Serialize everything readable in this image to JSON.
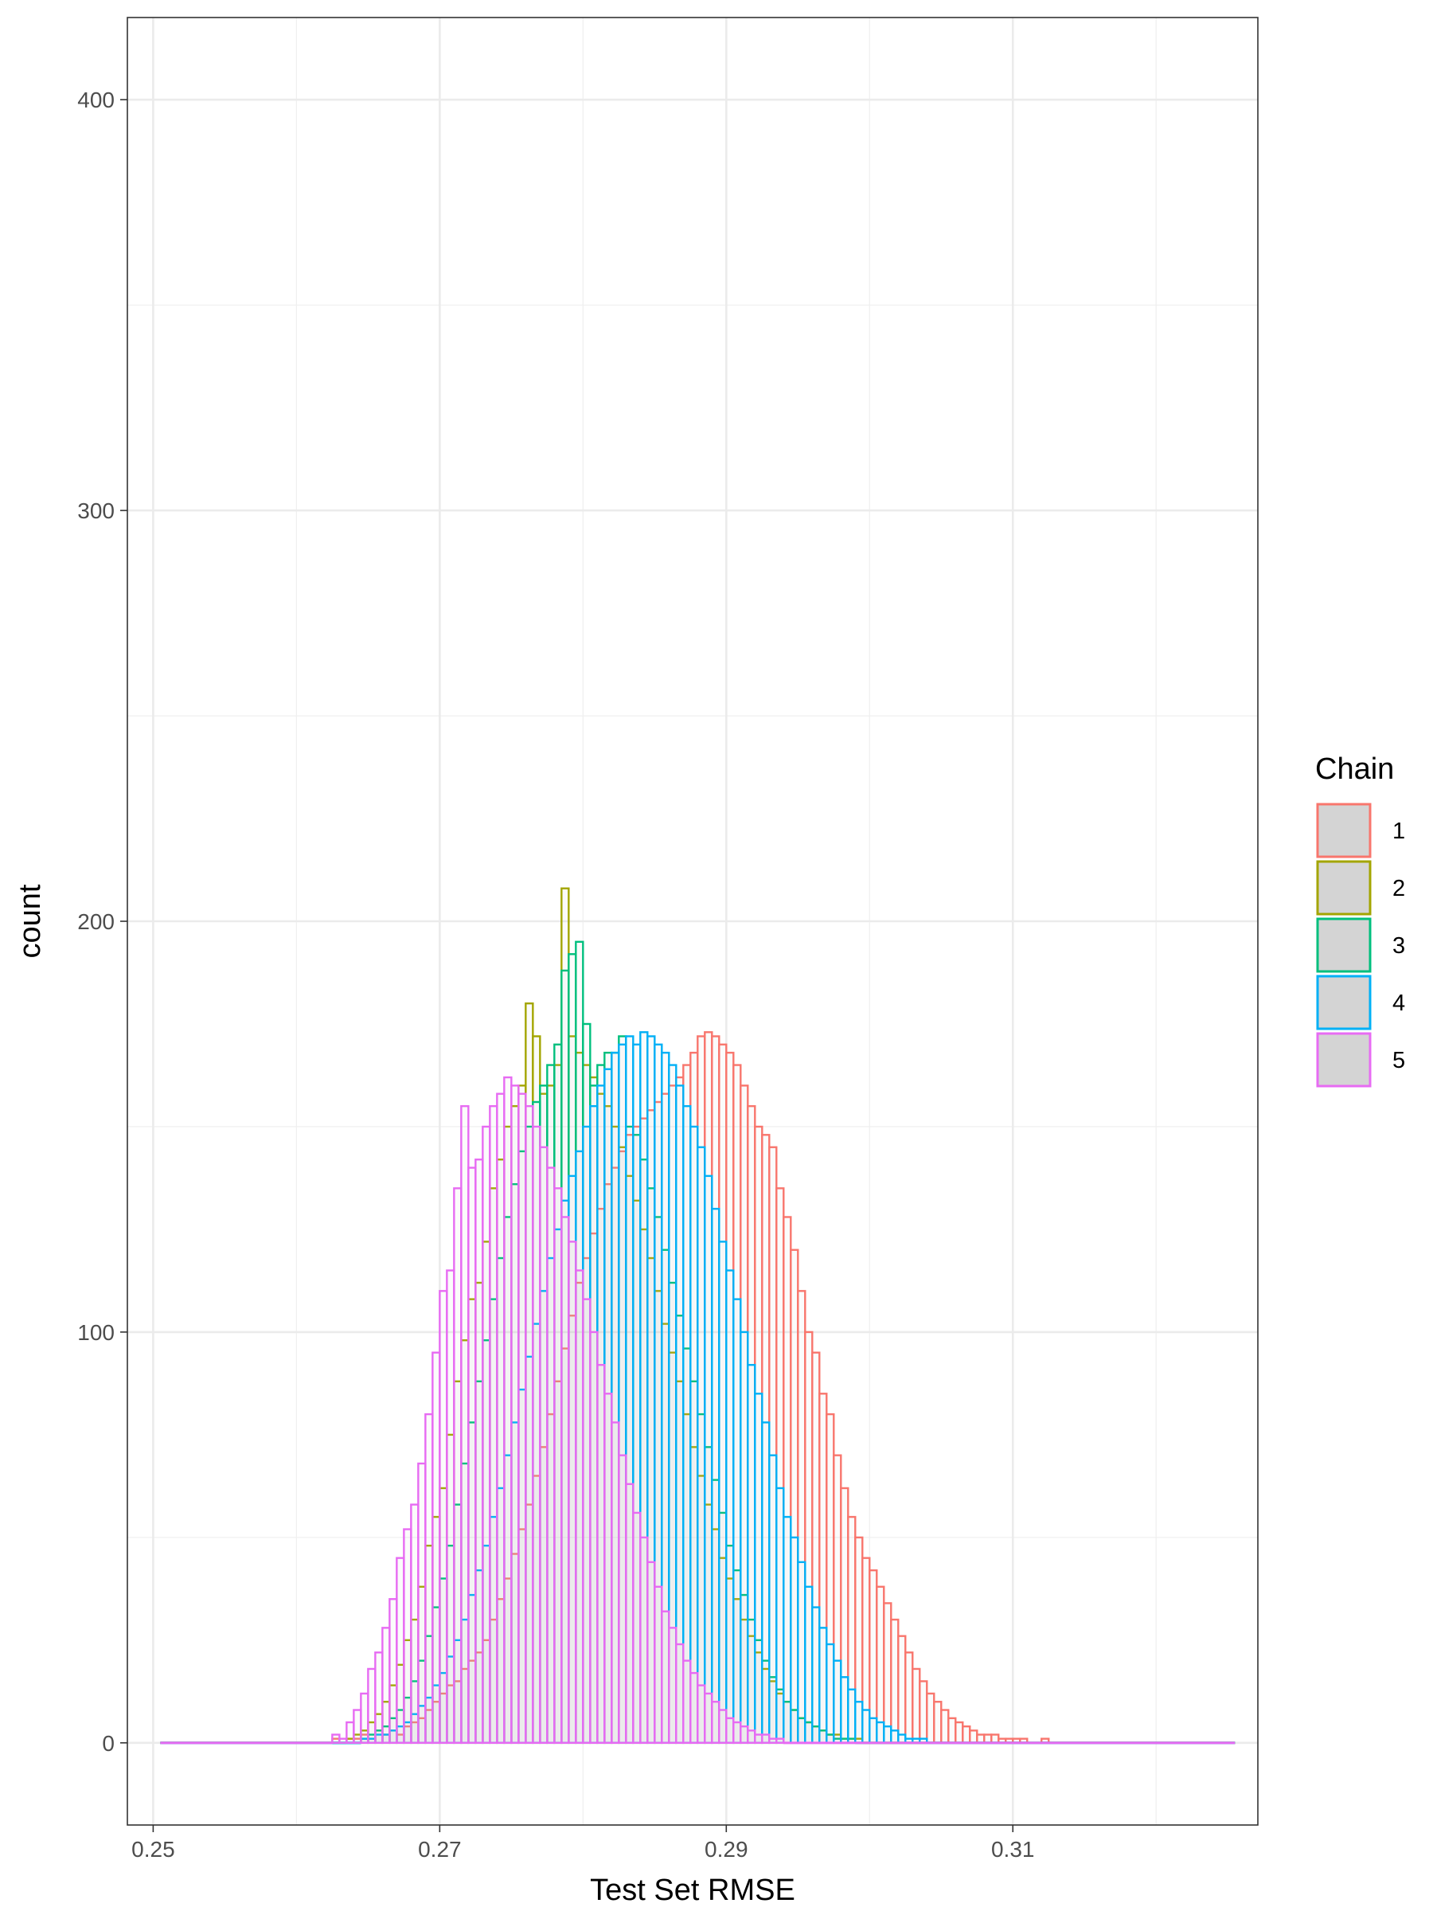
{
  "chart_data": {
    "type": "histogram",
    "xlabel": "Test Set RMSE",
    "ylabel": "count",
    "xlim": [
      0.2482,
      0.3271
    ],
    "ylim": [
      -20,
      420
    ],
    "x_ticks": [
      0.25,
      0.27,
      0.29,
      0.31
    ],
    "x_tick_labels": [
      "0.25",
      "0.27",
      "0.29",
      "0.31"
    ],
    "y_ticks": [
      0,
      100,
      200,
      300,
      400
    ],
    "y_tick_labels": [
      "0",
      "100",
      "200",
      "300",
      "400"
    ],
    "grid": true,
    "legend": {
      "title": "Chain",
      "position": "right",
      "entries": [
        "1",
        "2",
        "3",
        "4",
        "5"
      ]
    },
    "bin_width": 0.0005,
    "series": [
      {
        "name": "1",
        "color": "#F8766D",
        "x_start": 0.2625,
        "counts": [
          1,
          0,
          1,
          1,
          2,
          1,
          3,
          2,
          3,
          2,
          4,
          5,
          6,
          8,
          10,
          12,
          14,
          15,
          18,
          20,
          22,
          25,
          30,
          35,
          40,
          46,
          52,
          58,
          65,
          72,
          80,
          88,
          96,
          104,
          112,
          118,
          124,
          130,
          136,
          140,
          144,
          148,
          150,
          152,
          154,
          156,
          158,
          160,
          162,
          165,
          168,
          172,
          173,
          172,
          170,
          168,
          165,
          160,
          155,
          150,
          148,
          145,
          135,
          128,
          120,
          110,
          100,
          95,
          85,
          80,
          70,
          62,
          55,
          50,
          45,
          42,
          38,
          34,
          30,
          26,
          22,
          18,
          15,
          12,
          10,
          8,
          6,
          5,
          4,
          3,
          2,
          2,
          2,
          1,
          1,
          1,
          1,
          0,
          0,
          1
        ]
      },
      {
        "name": "2",
        "color": "#A3A500",
        "x_start": 0.2635,
        "counts": [
          1,
          2,
          3,
          5,
          7,
          10,
          14,
          19,
          25,
          30,
          38,
          48,
          55,
          62,
          75,
          88,
          98,
          108,
          112,
          122,
          135,
          142,
          150,
          155,
          160,
          180,
          172,
          158,
          160,
          165,
          208,
          172,
          168,
          165,
          162,
          158,
          155,
          150,
          145,
          138,
          132,
          125,
          118,
          110,
          102,
          95,
          88,
          80,
          72,
          65,
          58,
          52,
          45,
          40,
          35,
          30,
          26,
          22,
          18,
          15,
          12,
          10,
          8,
          6,
          5,
          4,
          3,
          2,
          2,
          1,
          1,
          1
        ]
      },
      {
        "name": "3",
        "color": "#00BF7D",
        "x_start": 0.2645,
        "counts": [
          1,
          2,
          3,
          4,
          6,
          8,
          11,
          15,
          20,
          26,
          33,
          40,
          48,
          58,
          68,
          78,
          88,
          98,
          108,
          118,
          128,
          136,
          144,
          150,
          156,
          160,
          165,
          170,
          188,
          192,
          195,
          175,
          160,
          165,
          168,
          168,
          172,
          150,
          148,
          142,
          135,
          128,
          120,
          112,
          104,
          96,
          88,
          80,
          72,
          64,
          56,
          48,
          42,
          36,
          30,
          25,
          20,
          16,
          13,
          10,
          8,
          6,
          5,
          4,
          3,
          2,
          1,
          1,
          1
        ]
      },
      {
        "name": "4",
        "color": "#00B0F6",
        "x_start": 0.2645,
        "counts": [
          1,
          1,
          2,
          2,
          3,
          4,
          5,
          7,
          9,
          11,
          14,
          17,
          21,
          25,
          30,
          36,
          42,
          48,
          55,
          62,
          70,
          78,
          86,
          94,
          102,
          110,
          118,
          125,
          132,
          138,
          144,
          150,
          155,
          160,
          164,
          168,
          170,
          172,
          170,
          173,
          172,
          170,
          168,
          165,
          160,
          155,
          150,
          145,
          138,
          130,
          122,
          115,
          108,
          100,
          92,
          85,
          78,
          70,
          62,
          55,
          50,
          44,
          38,
          33,
          28,
          24,
          20,
          16,
          13,
          10,
          8,
          6,
          5,
          4,
          3,
          2,
          1,
          1,
          1
        ]
      },
      {
        "name": "5",
        "color": "#E76BF3",
        "x_start": 0.2625,
        "counts": [
          2,
          1,
          5,
          8,
          12,
          18,
          22,
          28,
          35,
          45,
          52,
          58,
          68,
          80,
          95,
          110,
          115,
          135,
          155,
          140,
          142,
          150,
          155,
          158,
          162,
          160,
          158,
          155,
          150,
          145,
          140,
          135,
          128,
          122,
          115,
          108,
          100,
          92,
          85,
          78,
          70,
          63,
          56,
          50,
          44,
          38,
          32,
          28,
          24,
          20,
          17,
          14,
          12,
          10,
          8,
          6,
          5,
          4,
          3,
          2,
          2,
          1,
          1
        ]
      }
    ]
  }
}
